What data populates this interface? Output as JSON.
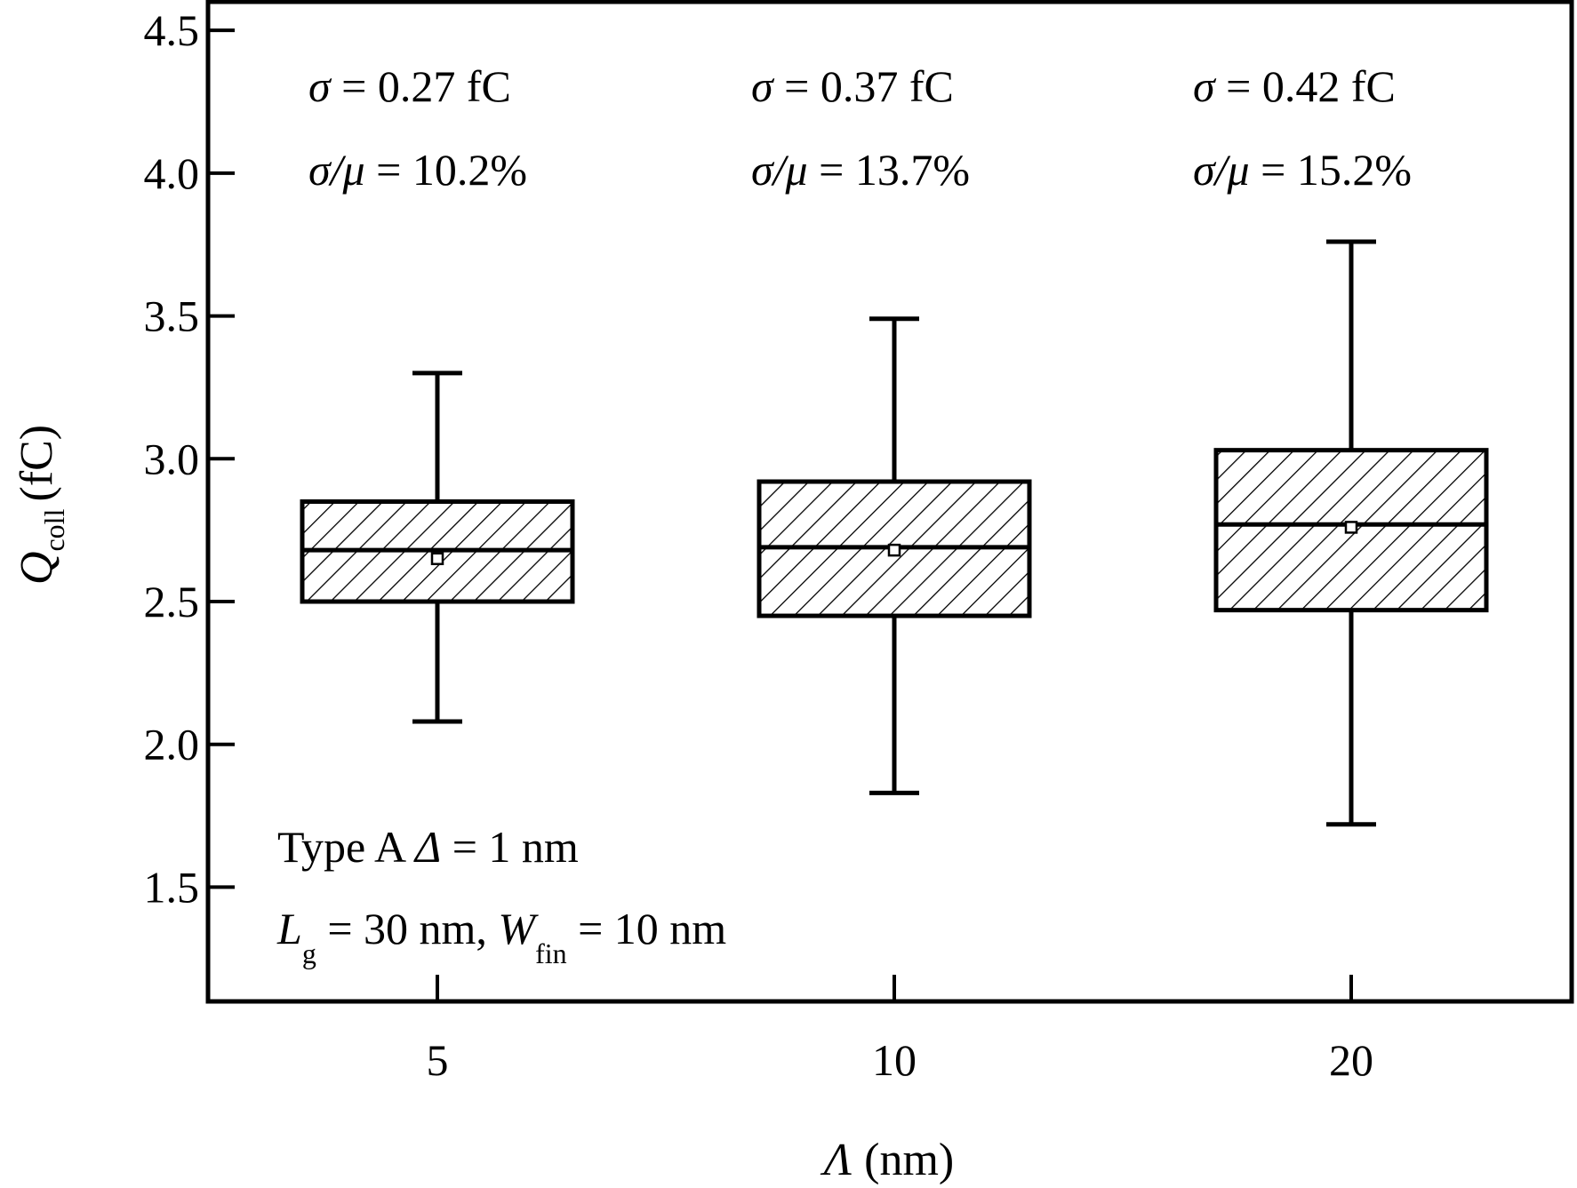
{
  "chart_data": {
    "type": "box",
    "xlabel_symbol": "Λ",
    "xlabel_unit": "(nm)",
    "ylabel_symbol": "Q",
    "ylabel_subscript": "coll",
    "ylabel_unit": "(fC)",
    "ylim": [
      1.1,
      4.6
    ],
    "yticks": [
      1.5,
      2.0,
      2.5,
      3.0,
      3.5,
      4.0,
      4.5
    ],
    "ytick_labels": [
      "1.5",
      "2.0",
      "2.5",
      "3.0",
      "3.5",
      "4.0",
      "4.5"
    ],
    "categories": [
      "5",
      "10",
      "20"
    ],
    "boxes": [
      {
        "category": "5",
        "whisker_low": 2.08,
        "q1": 2.5,
        "median": 2.68,
        "q3": 2.85,
        "whisker_high": 3.3,
        "mean": 2.65
      },
      {
        "category": "10",
        "whisker_low": 1.83,
        "q1": 2.45,
        "median": 2.69,
        "q3": 2.92,
        "whisker_high": 3.49,
        "mean": 2.68
      },
      {
        "category": "20",
        "whisker_low": 1.72,
        "q1": 2.47,
        "median": 2.77,
        "q3": 3.03,
        "whisker_high": 3.76,
        "mean": 2.76
      }
    ],
    "box_fill": "hatched",
    "stats": [
      {
        "sigma_label": "σ",
        "sigma_text": " = 0.27 fC",
        "ratio_label": "σ/μ",
        "ratio_text": " = 10.2%"
      },
      {
        "sigma_label": "σ",
        "sigma_text": " = 0.37 fC",
        "ratio_label": "σ/μ",
        "ratio_text": " = 13.7%"
      },
      {
        "sigma_label": "σ",
        "sigma_text": " = 0.42 fC",
        "ratio_label": "σ/μ",
        "ratio_text": " = 15.2%"
      }
    ],
    "note": {
      "line1_prefix": "Type A ",
      "line1_symbol": "Δ",
      "line1_suffix": " = 1 nm",
      "line2_L": "L",
      "line2_L_sub": "g",
      "line2_mid": " = 30 nm, ",
      "line2_W": "W",
      "line2_W_sub": "fin",
      "line2_end": " = 10 nm"
    },
    "colors": {
      "stroke": "#000000",
      "background": "#ffffff"
    }
  }
}
